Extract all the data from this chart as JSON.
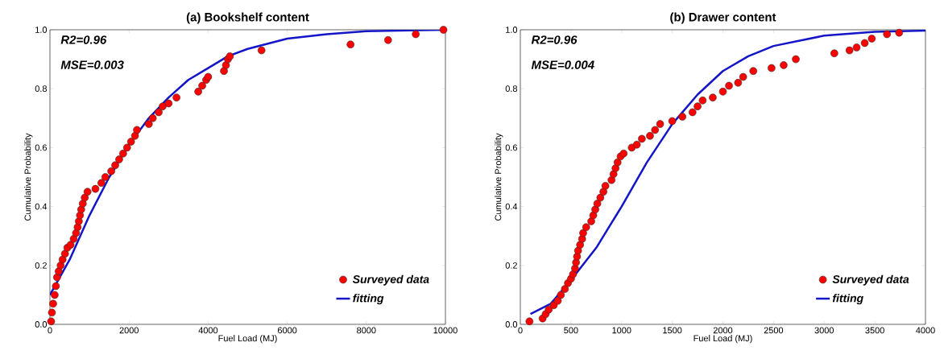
{
  "chart_data": [
    {
      "type": "scatter",
      "title": "(a) Bookshelf content",
      "xlabel": "Fuel Load (MJ)",
      "ylabel": "Cumulative Probability",
      "annotations": [
        "R2=0.96",
        "MSE=0.003"
      ],
      "xlim": [
        0,
        10000
      ],
      "ylim": [
        0,
        1
      ],
      "xticks": [
        0,
        2000,
        4000,
        6000,
        8000,
        10000
      ],
      "yticks": [
        {
          "value": 0,
          "label": "0.0"
        },
        {
          "value": 0.2,
          "label": "0.2"
        },
        {
          "value": 0.4,
          "label": "0.4"
        },
        {
          "value": 0.6,
          "label": "0.6"
        },
        {
          "value": 0.8,
          "label": "0.8"
        },
        {
          "value": 1,
          "label": "1.0"
        }
      ],
      "legend": "bottom right",
      "grid": false,
      "marker": "circle",
      "series": [
        {
          "name": "Surveyed data",
          "color": "#ff0000",
          "x": [
            30,
            50,
            80,
            120,
            150,
            180,
            220,
            270,
            320,
            380,
            440,
            520,
            600,
            660,
            700,
            730,
            760,
            790,
            830,
            880,
            950,
            1150,
            1300,
            1400,
            1550,
            1650,
            1750,
            1850,
            1950,
            2050,
            2150,
            2200,
            2500,
            2600,
            2750,
            2850,
            3000,
            3200,
            3750,
            3850,
            3950,
            4000,
            4400,
            4450,
            4500,
            4550,
            5350,
            7600,
            8550,
            9250,
            9950
          ],
          "values": [
            0.01,
            0.04,
            0.07,
            0.1,
            0.13,
            0.16,
            0.18,
            0.2,
            0.22,
            0.24,
            0.26,
            0.27,
            0.29,
            0.31,
            0.33,
            0.35,
            0.37,
            0.39,
            0.41,
            0.43,
            0.45,
            0.46,
            0.48,
            0.5,
            0.52,
            0.54,
            0.56,
            0.58,
            0.6,
            0.62,
            0.64,
            0.66,
            0.68,
            0.7,
            0.72,
            0.74,
            0.75,
            0.77,
            0.79,
            0.81,
            0.83,
            0.84,
            0.86,
            0.88,
            0.9,
            0.91,
            0.93,
            0.95,
            0.965,
            0.985,
            1.0
          ]
        },
        {
          "name": "fitting",
          "type": "line",
          "marker": "none",
          "line_style": "solid",
          "color": "#1414c8",
          "x": [
            0,
            500,
            1000,
            1500,
            2000,
            2500,
            3000,
            3500,
            4000,
            4500,
            5000,
            6000,
            7000,
            8000,
            10000
          ],
          "values": [
            0.1,
            0.22,
            0.37,
            0.5,
            0.61,
            0.7,
            0.77,
            0.83,
            0.87,
            0.91,
            0.935,
            0.97,
            0.985,
            0.995,
            1.0
          ]
        }
      ]
    },
    {
      "type": "scatter",
      "title": "(b) Drawer content",
      "xlabel": "Fuel Load (MJ)",
      "ylabel": "Cumulative Probability",
      "annotations": [
        "R2=0.96",
        "MSE=0.004"
      ],
      "xlim": [
        0,
        4000
      ],
      "ylim": [
        0,
        1
      ],
      "xticks": [
        0,
        500,
        1000,
        1500,
        2000,
        2500,
        3000,
        3500,
        4000
      ],
      "yticks": [
        {
          "value": 0,
          "label": "0.0"
        },
        {
          "value": 0.2,
          "label": "0.2"
        },
        {
          "value": 0.4,
          "label": "0.4"
        },
        {
          "value": 0.6,
          "label": "0.6"
        },
        {
          "value": 0.8,
          "label": "0.8"
        },
        {
          "value": 1,
          "label": "1.0"
        }
      ],
      "legend": "bottom right",
      "grid": false,
      "marker": "circle",
      "series": [
        {
          "name": "Surveyed data",
          "color": "#ff0000",
          "x": [
            90,
            220,
            250,
            280,
            330,
            370,
            400,
            440,
            470,
            500,
            520,
            540,
            550,
            560,
            570,
            590,
            610,
            620,
            650,
            700,
            720,
            740,
            760,
            790,
            820,
            840,
            900,
            920,
            940,
            960,
            990,
            1020,
            1100,
            1150,
            1200,
            1280,
            1330,
            1380,
            1500,
            1600,
            1700,
            1750,
            1800,
            1900,
            2000,
            2060,
            2150,
            2200,
            2300,
            2480,
            2600,
            2720,
            3100,
            3250,
            3320,
            3400,
            3470,
            3620,
            3740
          ],
          "values": [
            0.01,
            0.02,
            0.035,
            0.05,
            0.065,
            0.08,
            0.1,
            0.12,
            0.14,
            0.155,
            0.17,
            0.19,
            0.21,
            0.23,
            0.25,
            0.27,
            0.29,
            0.31,
            0.33,
            0.35,
            0.37,
            0.39,
            0.41,
            0.43,
            0.45,
            0.47,
            0.49,
            0.51,
            0.53,
            0.55,
            0.57,
            0.58,
            0.6,
            0.61,
            0.63,
            0.64,
            0.66,
            0.68,
            0.69,
            0.705,
            0.72,
            0.74,
            0.76,
            0.77,
            0.79,
            0.81,
            0.82,
            0.84,
            0.86,
            0.87,
            0.88,
            0.9,
            0.92,
            0.93,
            0.94,
            0.955,
            0.97,
            0.985,
            0.99
          ]
        },
        {
          "name": "fitting",
          "type": "line",
          "marker": "none",
          "line_style": "solid",
          "color": "#1414c8",
          "x": [
            100,
            300,
            500,
            750,
            1000,
            1250,
            1500,
            1750,
            2000,
            2250,
            2500,
            3000,
            3500,
            4000
          ],
          "values": [
            0.035,
            0.07,
            0.15,
            0.26,
            0.4,
            0.55,
            0.68,
            0.78,
            0.86,
            0.91,
            0.945,
            0.98,
            0.993,
            0.997
          ]
        }
      ]
    }
  ]
}
